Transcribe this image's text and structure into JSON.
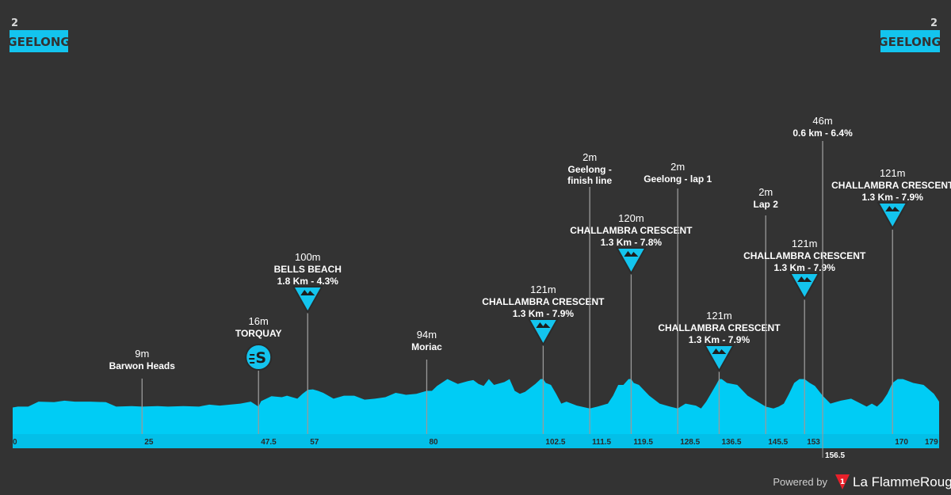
{
  "header": {
    "start": {
      "number": "2",
      "name": "GEELONG"
    },
    "finish": {
      "number": "2",
      "name": "GEELONG"
    }
  },
  "colors": {
    "background": "#333333",
    "profile_fill": "#00ccf5",
    "profile_shadow": "#0aa8d2",
    "axis_band": "#03bfe8",
    "badge_bg": "#13c4ee",
    "line": "#9a9a9a"
  },
  "chart_data": {
    "type": "area",
    "title": "",
    "xlabel": "",
    "ylabel": "",
    "xlim": [
      0,
      179
    ],
    "x_ticks": [
      "0",
      "25",
      "47.5",
      "57",
      "80",
      "102.5",
      "111.5",
      "119.5",
      "128.5",
      "136.5",
      "145.5",
      "153",
      "156.5",
      "170",
      "179"
    ],
    "profile_km": [
      0,
      1,
      3,
      5,
      8,
      10,
      12,
      15,
      18,
      20,
      23,
      25,
      28,
      30,
      33,
      36,
      38,
      40,
      42,
      44,
      46,
      47.5,
      48,
      50,
      52,
      53,
      55,
      56,
      57,
      58,
      59,
      60,
      62,
      64,
      66,
      68,
      70,
      72,
      74,
      76,
      78,
      80,
      81,
      82,
      84,
      86,
      88,
      89,
      90,
      91,
      92,
      93,
      95,
      96,
      97,
      98,
      99,
      100,
      101,
      102,
      102.5,
      103,
      104,
      105,
      106,
      107,
      109,
      111.5,
      113,
      115,
      116,
      117,
      118,
      119,
      119.5,
      120,
      121,
      123,
      125,
      127,
      128.5,
      130,
      132,
      133,
      134,
      135,
      136,
      136.5,
      137,
      138,
      140,
      142,
      145.5,
      147,
      148,
      149,
      150,
      151,
      152,
      153,
      154,
      155,
      156.5,
      158,
      160,
      162,
      165,
      166,
      167,
      168,
      169,
      170,
      171,
      172,
      174,
      176,
      178,
      179
    ],
    "profile_elev": [
      12,
      14,
      14,
      24,
      23,
      26,
      24,
      24,
      23,
      14,
      15,
      14,
      15,
      14,
      15,
      14,
      18,
      16,
      18,
      20,
      24,
      14,
      25,
      35,
      33,
      36,
      30,
      40,
      48,
      49,
      46,
      42,
      30,
      36,
      36,
      28,
      30,
      33,
      42,
      38,
      40,
      46,
      46,
      56,
      70,
      60,
      66,
      68,
      60,
      56,
      70,
      58,
      64,
      70,
      46,
      40,
      44,
      52,
      60,
      70,
      70,
      62,
      58,
      40,
      20,
      24,
      16,
      10,
      14,
      20,
      36,
      58,
      58,
      70,
      70,
      62,
      58,
      36,
      20,
      14,
      10,
      20,
      16,
      10,
      24,
      42,
      60,
      70,
      70,
      62,
      58,
      36,
      14,
      10,
      14,
      20,
      40,
      62,
      70,
      70,
      62,
      56,
      36,
      20,
      26,
      30,
      14,
      20,
      14,
      24,
      40,
      62,
      70,
      70,
      62,
      58,
      40,
      24,
      14,
      10
    ],
    "markers": [
      {
        "km": 25,
        "elevation": "9m",
        "name": "Barwon Heads",
        "type": "point"
      },
      {
        "km": 47.5,
        "elevation": "16m",
        "name": "TORQUAY",
        "type": "sprint"
      },
      {
        "km": 57,
        "elevation": "100m",
        "name": "BELLS BEACH",
        "detail": "1.8 Km - 4.3%",
        "type": "climb"
      },
      {
        "km": 80,
        "elevation": "94m",
        "name": "Moriac",
        "type": "point"
      },
      {
        "km": 102.5,
        "elevation": "121m",
        "name": "CHALLAMBRA CRESCENT",
        "detail": "1.3 Km - 7.9%",
        "type": "climb"
      },
      {
        "km": 111.5,
        "elevation": "2m",
        "name": "Geelong - finish line",
        "type": "point"
      },
      {
        "km": 119.5,
        "elevation": "120m",
        "name": "CHALLAMBRA CRESCENT",
        "detail": "1.3 Km - 7.8%",
        "type": "climb"
      },
      {
        "km": 128.5,
        "elevation": "2m",
        "name": "Geelong - lap 1",
        "type": "point"
      },
      {
        "km": 136.5,
        "elevation": "121m",
        "name": "CHALLAMBRA CRESCENT",
        "detail": "1.3 Km - 7.9%",
        "type": "climb"
      },
      {
        "km": 145.5,
        "elevation": "2m",
        "name": "Lap 2",
        "type": "point"
      },
      {
        "km": 153,
        "elevation": "121m",
        "name": "CHALLAMBRA CRESCENT",
        "detail": "1.3 Km - 7.9%",
        "type": "climb"
      },
      {
        "km": 156.5,
        "elevation": "46m",
        "name": "0.6 km - 6.4%",
        "type": "point"
      },
      {
        "km": 170,
        "elevation": "121m",
        "name": "CHALLAMBRA CRESCENT",
        "detail": "1.3 Km - 7.9%",
        "type": "climb"
      }
    ]
  },
  "footer": {
    "powered_by": "Powered by",
    "brand": "La FlammeRouge",
    "brand_logo_letter": "1"
  }
}
